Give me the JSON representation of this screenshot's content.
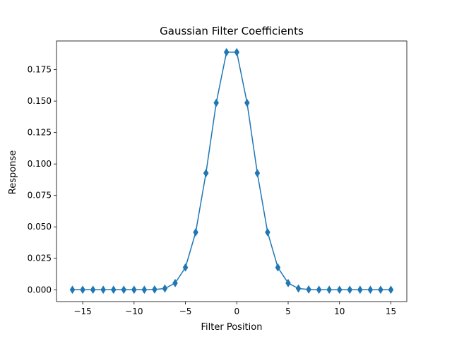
{
  "chart_data": {
    "type": "line",
    "title": "Gaussian Filter Coefficients",
    "xlabel": "Filter Position",
    "ylabel": "Response",
    "xlim": [
      -17.55,
      16.55
    ],
    "ylim": [
      -0.0094,
      0.1978
    ],
    "xticks": [
      -15,
      -10,
      -5,
      0,
      5,
      10,
      15
    ],
    "xtick_labels": [
      "−15",
      "−10",
      "−5",
      "0",
      "5",
      "10",
      "15"
    ],
    "yticks": [
      0.0,
      0.025,
      0.05,
      0.075,
      0.1,
      0.125,
      0.15,
      0.175
    ],
    "ytick_labels": [
      "0.000",
      "0.025",
      "0.050",
      "0.075",
      "0.100",
      "0.125",
      "0.150",
      "0.175"
    ],
    "grid": false,
    "series": [
      {
        "color": "#1f77b4",
        "marker": "thin_diamond",
        "x": [
          -16,
          -15,
          -14,
          -13,
          -12,
          -11,
          -10,
          -9,
          -8,
          -7,
          -6,
          -5,
          -4,
          -3,
          -2,
          -1,
          0,
          1,
          2,
          3,
          4,
          5,
          6,
          7,
          8,
          9,
          10,
          11,
          12,
          13,
          14,
          15
        ],
        "y": [
          0.0,
          0.0,
          0.0,
          0.0,
          0.0,
          0.0,
          0.0,
          0.0,
          0.0002,
          0.001,
          0.0053,
          0.0177,
          0.0457,
          0.0927,
          0.1486,
          0.1889,
          0.1889,
          0.1486,
          0.0927,
          0.0457,
          0.0177,
          0.0053,
          0.001,
          0.0002,
          0.0,
          0.0,
          0.0,
          0.0,
          0.0,
          0.0,
          0.0,
          0.0
        ]
      }
    ]
  }
}
